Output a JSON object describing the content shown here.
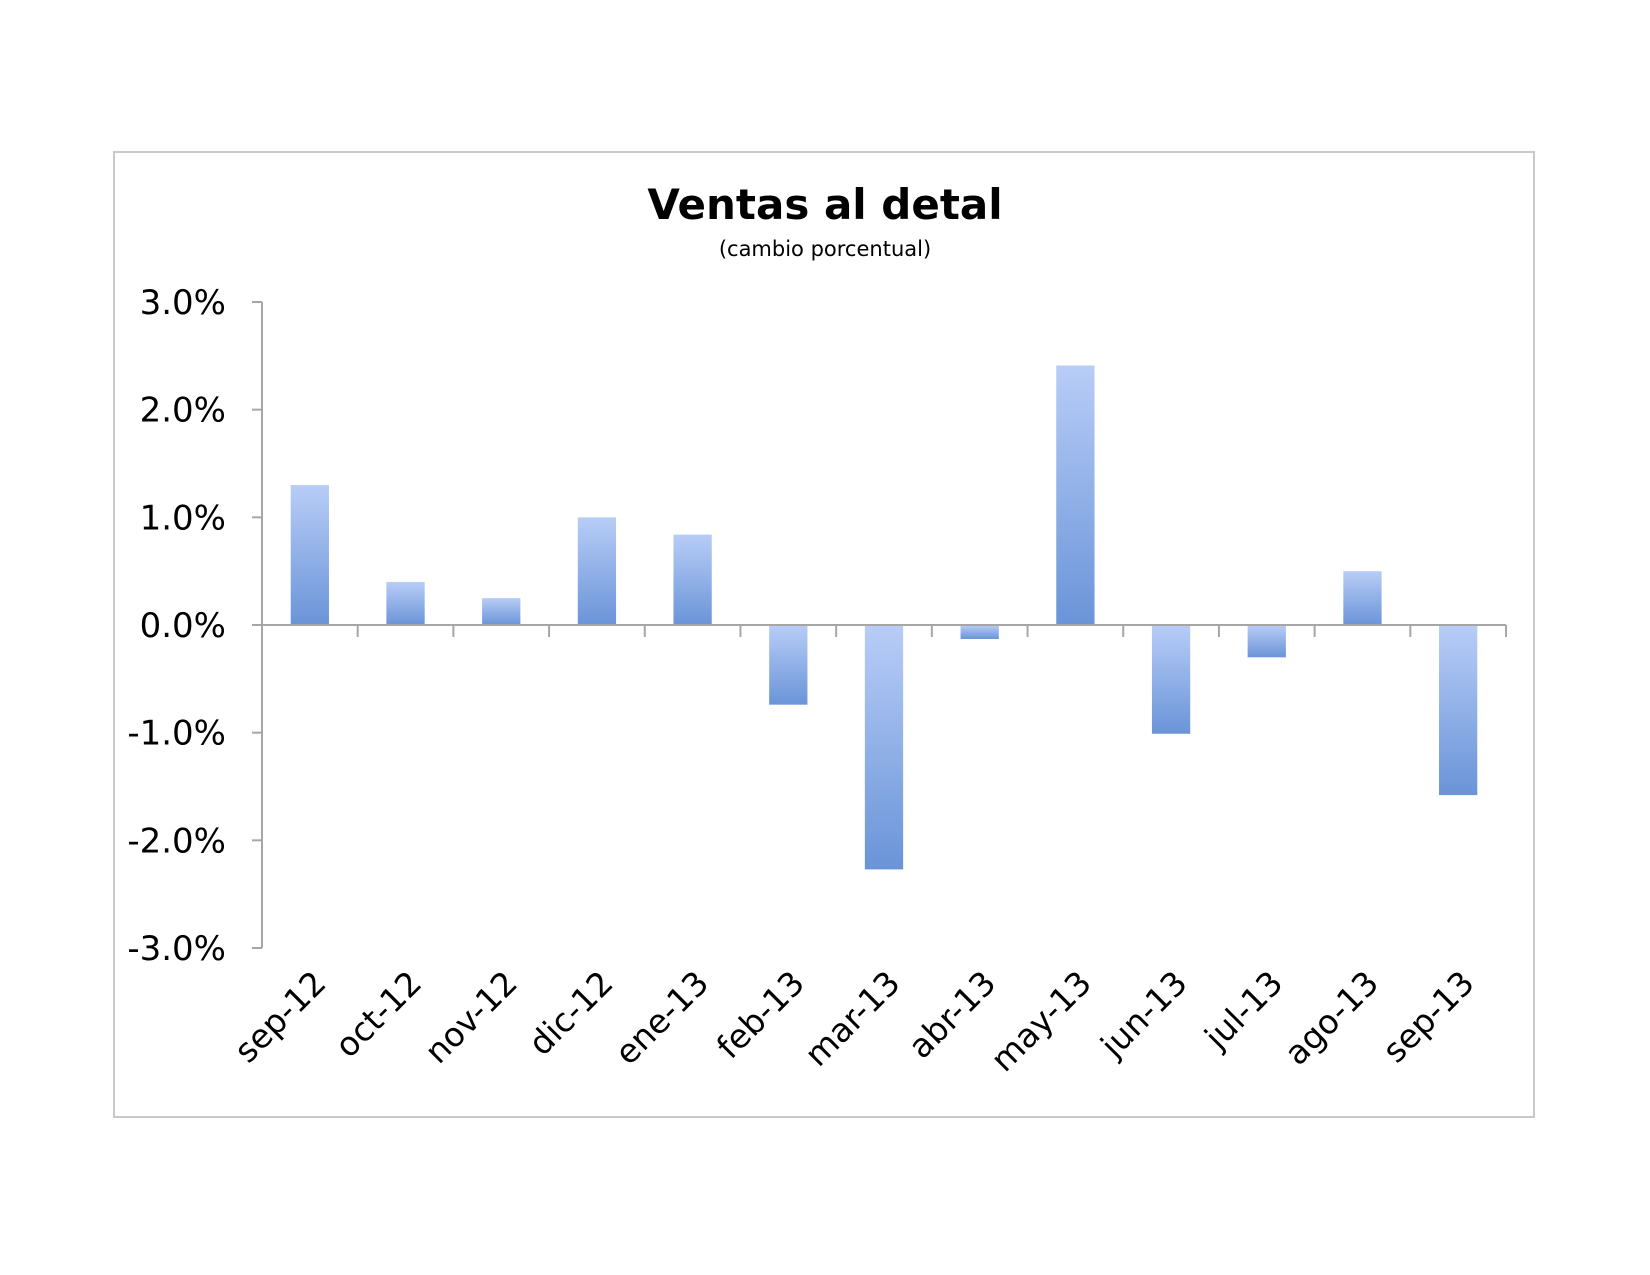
{
  "chart_data": {
    "type": "bar",
    "title": "Ventas al detal",
    "subtitle": "(cambio porcentual)",
    "xlabel": "",
    "ylabel": "",
    "categories": [
      "sep-12",
      "oct-12",
      "nov-12",
      "dic-12",
      "ene-13",
      "feb-13",
      "mar-13",
      "abr-13",
      "may-13",
      "jun-13",
      "jul-13",
      "ago-13",
      "sep-13"
    ],
    "values": [
      1.3,
      0.4,
      0.25,
      1.0,
      0.84,
      -0.74,
      -2.27,
      -0.13,
      2.41,
      -1.01,
      -0.3,
      0.5,
      -1.58
    ],
    "ylim": [
      -3.0,
      3.0
    ],
    "yticks": [
      3.0,
      2.0,
      1.0,
      0.0,
      -1.0,
      -2.0,
      -3.0
    ],
    "ytick_labels": [
      "3.0%",
      "2.0%",
      "1.0%",
      "0.0%",
      "-1.0%",
      "-2.0%",
      "-3.0%"
    ],
    "grid": false,
    "legend": "none",
    "colors": {
      "bar_top": "#b8cdf7",
      "bar_bottom": "#6a94d8",
      "axis": "#a6a6a6",
      "frame": "#c9c9c9"
    }
  }
}
